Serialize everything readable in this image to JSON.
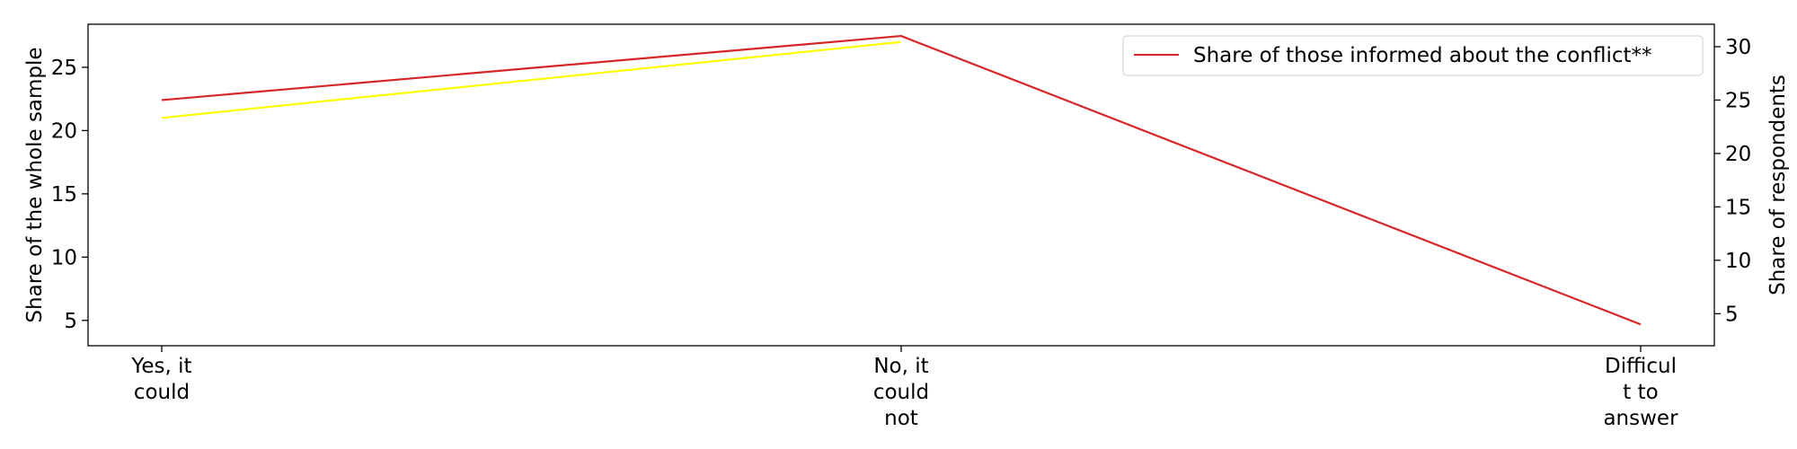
{
  "chart_data": {
    "type": "line",
    "categories": [
      [
        "Yes, it",
        "could"
      ],
      [
        "No, it",
        "could",
        "not"
      ],
      [
        "Difficul",
        "t to",
        "answer"
      ]
    ],
    "left_axis": {
      "label": "Share of the whole sample",
      "ticks": [
        5,
        10,
        15,
        20,
        25
      ],
      "ylim": [
        3,
        28.4
      ]
    },
    "right_axis": {
      "label": "Share of respondents",
      "ticks": [
        5,
        10,
        15,
        20,
        25,
        30
      ],
      "ylim": [
        2,
        32.1
      ]
    },
    "series": [
      {
        "axis": "left",
        "color": "#ffff00",
        "values": [
          21,
          27,
          null
        ]
      },
      {
        "name": "Share of those informed about the conflict**",
        "axis": "right",
        "color": "#d62728",
        "values": [
          25,
          31,
          4
        ]
      }
    ],
    "legend": {
      "position": "top-right",
      "entries": [
        "Share of those informed about the conflict**"
      ]
    },
    "grid": false
  }
}
